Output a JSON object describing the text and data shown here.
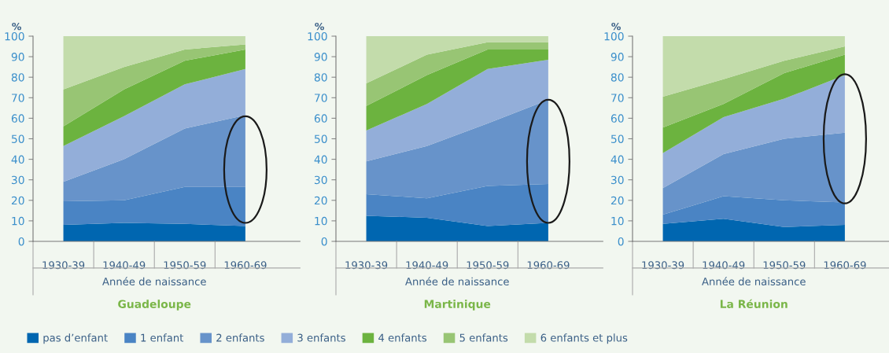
{
  "chart_data": [
    {
      "type": "area",
      "stacked": true,
      "title": "Guadeloupe",
      "xlabel": "Année de naissance",
      "ylabel": "%",
      "categories": [
        "1930-39",
        "1940-49",
        "1950-59",
        "1960-69"
      ],
      "ylim": [
        0,
        100
      ],
      "yticks": [
        0,
        10,
        20,
        30,
        40,
        50,
        60,
        70,
        80,
        90,
        100
      ],
      "grid": false,
      "legend": "bottom",
      "series": [
        {
          "name": "pas d’enfant",
          "color": "#0066b0",
          "values": [
            8,
            9,
            8.5,
            7.5
          ]
        },
        {
          "name": "1 enfant",
          "color": "#4a84c4",
          "values": [
            11.5,
            11,
            18,
            19
          ]
        },
        {
          "name": "2 enfants",
          "color": "#6793ca",
          "values": [
            9.5,
            20,
            28.5,
            35
          ]
        },
        {
          "name": "3 enfants",
          "color": "#93aed9",
          "values": [
            17.5,
            21,
            21.5,
            22.5
          ]
        },
        {
          "name": "4 enfants",
          "color": "#6cb33f",
          "values": [
            9.5,
            13,
            11.5,
            9.5
          ]
        },
        {
          "name": "5 enfants",
          "color": "#98c574",
          "values": [
            18,
            11,
            5.5,
            2.5
          ]
        },
        {
          "name": "6 enfants et plus",
          "color": "#c3dcab",
          "values": [
            26,
            15,
            6.5,
            4
          ]
        }
      ]
    },
    {
      "type": "area",
      "stacked": true,
      "title": "Martinique",
      "xlabel": "Année de naissance",
      "ylabel": "%",
      "categories": [
        "1930-39",
        "1940-49",
        "1950-59",
        "1960-69"
      ],
      "ylim": [
        0,
        100
      ],
      "yticks": [
        0,
        10,
        20,
        30,
        40,
        50,
        60,
        70,
        80,
        90,
        100
      ],
      "grid": false,
      "series": [
        {
          "color": "#0066b0",
          "values": [
            12.5,
            11.5,
            7.5,
            9
          ]
        },
        {
          "color": "#4a84c4",
          "values": [
            10.5,
            9.5,
            19.5,
            19
          ]
        },
        {
          "color": "#6793ca",
          "values": [
            16,
            25.5,
            30.5,
            41
          ]
        },
        {
          "color": "#93aed9",
          "values": [
            15,
            20.5,
            26.5,
            19.5
          ]
        },
        {
          "color": "#6cb33f",
          "values": [
            12,
            14,
            9.5,
            5
          ]
        },
        {
          "color": "#98c574",
          "values": [
            11,
            10,
            3.5,
            3.5
          ]
        },
        {
          "color": "#c3dcab",
          "values": [
            23,
            9,
            3,
            3
          ]
        }
      ]
    },
    {
      "type": "area",
      "stacked": true,
      "title": "La Réunion",
      "xlabel": "Année de naissance",
      "ylabel": "%",
      "categories": [
        "1930-39",
        "1940-49",
        "1950-59",
        "1960-69"
      ],
      "ylim": [
        0,
        100
      ],
      "yticks": [
        0,
        10,
        20,
        30,
        40,
        50,
        60,
        70,
        80,
        90,
        100
      ],
      "grid": false,
      "series": [
        {
          "color": "#0066b0",
          "values": [
            8.5,
            11,
            7,
            8
          ]
        },
        {
          "color": "#4a84c4",
          "values": [
            4.5,
            11,
            13,
            11
          ]
        },
        {
          "color": "#6793ca",
          "values": [
            13,
            20.5,
            30,
            34
          ]
        },
        {
          "color": "#93aed9",
          "values": [
            17,
            18,
            19.5,
            28
          ]
        },
        {
          "color": "#6cb33f",
          "values": [
            12.5,
            6.5,
            12.5,
            10
          ]
        },
        {
          "color": "#98c574",
          "values": [
            15,
            12,
            6,
            4
          ]
        },
        {
          "color": "#c3dcab",
          "values": [
            29.5,
            21,
            12,
            5
          ]
        }
      ]
    }
  ]
}
